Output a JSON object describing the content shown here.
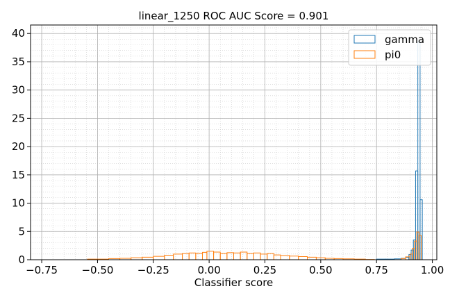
{
  "chart_data": {
    "type": "histogram",
    "title": "linear_1250 ROC AUC Score = 0.901",
    "xlabel": "Classifier score",
    "ylabel": "",
    "xlim": [
      -0.8,
      1.02
    ],
    "ylim": [
      0,
      41.5
    ],
    "xticks": [
      -0.75,
      -0.5,
      -0.25,
      0.0,
      0.25,
      0.5,
      0.75,
      1.0
    ],
    "xtick_labels": [
      "−0.75",
      "−0.50",
      "−0.25",
      "0.00",
      "0.25",
      "0.50",
      "0.75",
      "1.00"
    ],
    "yticks": [
      0,
      5,
      10,
      15,
      20,
      25,
      30,
      35,
      40
    ],
    "ytick_labels": [
      "0",
      "5",
      "10",
      "15",
      "20",
      "25",
      "30",
      "35",
      "40"
    ],
    "grid": "major and minor",
    "legend_position": "top-right",
    "histtype": "step",
    "series": [
      {
        "name": "gamma",
        "color": "#1f77b4",
        "bins": [
          [
            0.75,
            0.79,
            0.1
          ],
          [
            0.79,
            0.83,
            0.1
          ],
          [
            0.83,
            0.86,
            0.15
          ],
          [
            0.86,
            0.88,
            0.25
          ],
          [
            0.88,
            0.895,
            0.4
          ],
          [
            0.895,
            0.905,
            0.9
          ],
          [
            0.905,
            0.915,
            1.7
          ],
          [
            0.915,
            0.925,
            3.5
          ],
          [
            0.925,
            0.935,
            15.7
          ],
          [
            0.935,
            0.945,
            38.5
          ],
          [
            0.945,
            0.955,
            10.6
          ]
        ]
      },
      {
        "name": "pi0",
        "color": "#ff7f0e",
        "bins": [
          [
            -0.545,
            -0.45,
            0.1
          ],
          [
            -0.45,
            -0.4,
            0.2
          ],
          [
            -0.4,
            -0.35,
            0.25
          ],
          [
            -0.35,
            -0.3,
            0.35
          ],
          [
            -0.3,
            -0.25,
            0.45
          ],
          [
            -0.25,
            -0.2,
            0.6
          ],
          [
            -0.2,
            -0.16,
            0.8
          ],
          [
            -0.16,
            -0.12,
            1.0
          ],
          [
            -0.12,
            -0.09,
            1.1
          ],
          [
            -0.09,
            -0.06,
            1.2
          ],
          [
            -0.06,
            -0.03,
            1.15
          ],
          [
            -0.03,
            -0.01,
            1.3
          ],
          [
            -0.01,
            0.02,
            1.5
          ],
          [
            0.02,
            0.05,
            1.35
          ],
          [
            0.05,
            0.08,
            1.1
          ],
          [
            0.08,
            0.11,
            1.25
          ],
          [
            0.11,
            0.14,
            1.2
          ],
          [
            0.14,
            0.17,
            1.35
          ],
          [
            0.17,
            0.2,
            1.1
          ],
          [
            0.2,
            0.23,
            1.2
          ],
          [
            0.23,
            0.26,
            1.0
          ],
          [
            0.26,
            0.29,
            1.1
          ],
          [
            0.29,
            0.32,
            0.85
          ],
          [
            0.32,
            0.36,
            0.75
          ],
          [
            0.36,
            0.4,
            0.65
          ],
          [
            0.4,
            0.44,
            0.55
          ],
          [
            0.44,
            0.48,
            0.45
          ],
          [
            0.48,
            0.52,
            0.35
          ],
          [
            0.52,
            0.56,
            0.25
          ],
          [
            0.56,
            0.6,
            0.2
          ],
          [
            0.6,
            0.65,
            0.15
          ],
          [
            0.65,
            0.7,
            0.1
          ],
          [
            0.7,
            0.74,
            0.05
          ],
          [
            0.86,
            0.88,
            0.2
          ],
          [
            0.88,
            0.9,
            0.5
          ],
          [
            0.9,
            0.91,
            1.0
          ],
          [
            0.91,
            0.92,
            2.0
          ],
          [
            0.92,
            0.93,
            3.3
          ],
          [
            0.93,
            0.94,
            4.9
          ],
          [
            0.94,
            0.95,
            4.3
          ]
        ]
      }
    ]
  }
}
